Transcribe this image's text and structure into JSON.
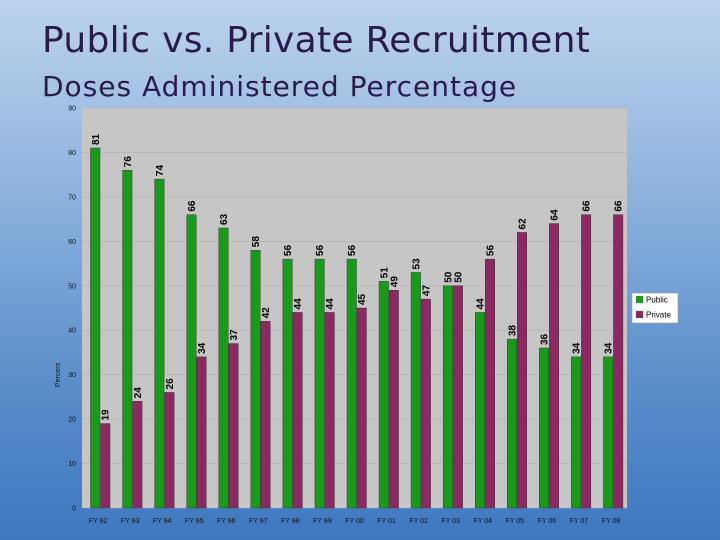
{
  "header": {
    "title": "Public vs. Private Recruitment",
    "subtitle": "Doses Administered Percentage"
  },
  "colors": {
    "public": "#1a9a1a",
    "private": "#8b2a62",
    "plot_bg": "#c6c6c6",
    "grid": "#b0b0b0"
  },
  "chart_data": {
    "type": "bar",
    "title": "Public vs. Private Recruitment",
    "subtitle": "Doses Administered Percentage",
    "ylabel": "Percent",
    "xlabel": "",
    "ylim": [
      0,
      90
    ],
    "yticks": [
      "0",
      "10",
      "20",
      "30",
      "40",
      "50",
      "60",
      "70",
      "80",
      "90"
    ],
    "grid": true,
    "legend_position": "right",
    "categories": [
      "FY 92",
      "FY 93",
      "FY 94",
      "FY 95",
      "FY 96",
      "FY 97",
      "FY 98",
      "FY 99",
      "FY 00",
      "FY 01",
      "FY 02",
      "FY 03",
      "FY 04",
      "FY 05",
      "FY 06",
      "FY 07",
      "FY 08"
    ],
    "series": [
      {
        "name": "Public",
        "values": [
          81,
          76,
          74,
          66,
          63,
          58,
          56,
          56,
          56,
          51,
          53,
          50,
          44,
          38,
          36,
          34,
          34
        ]
      },
      {
        "name": "Private",
        "values": [
          19,
          24,
          26,
          34,
          37,
          42,
          44,
          44,
          45,
          49,
          47,
          50,
          56,
          62,
          64,
          66,
          66
        ]
      }
    ]
  }
}
